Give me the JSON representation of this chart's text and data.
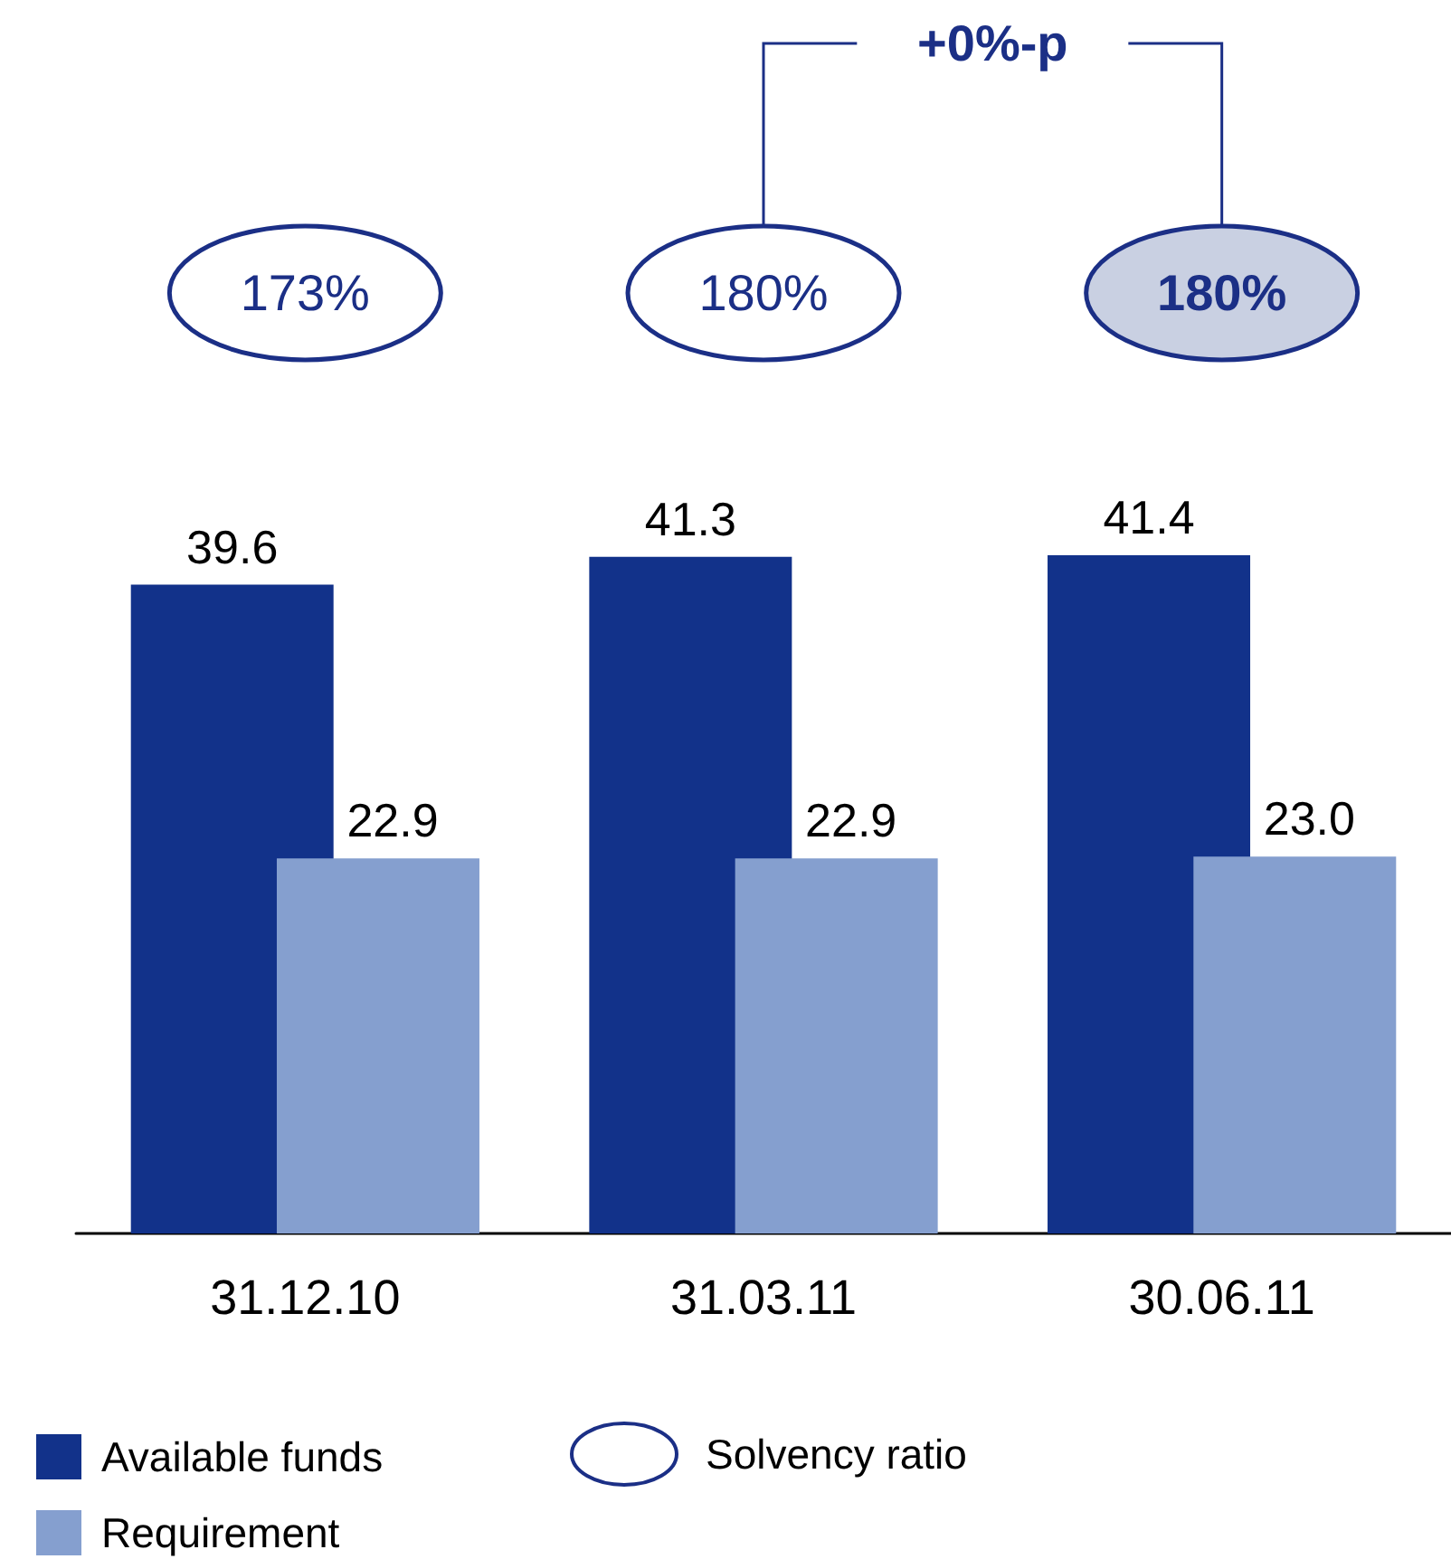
{
  "chart_data": {
    "type": "bar",
    "categories": [
      "31.12.10",
      "31.03.11",
      "30.06.11"
    ],
    "series": [
      {
        "name": "Available funds",
        "color": "#12328a",
        "values": [
          39.6,
          41.3,
          41.4
        ],
        "value_labels": [
          "39.6",
          "41.3",
          "41.4"
        ]
      },
      {
        "name": "Requirement",
        "color": "#859fcf",
        "values": [
          22.9,
          22.9,
          23.0
        ],
        "value_labels": [
          "22.9",
          "22.9",
          "23.0"
        ]
      }
    ],
    "legend": "bottom left",
    "grid": false,
    "annotations": [
      "173%",
      "180%",
      "180%",
      "+0%-p",
      "Solvency ratio"
    ]
  }
}
